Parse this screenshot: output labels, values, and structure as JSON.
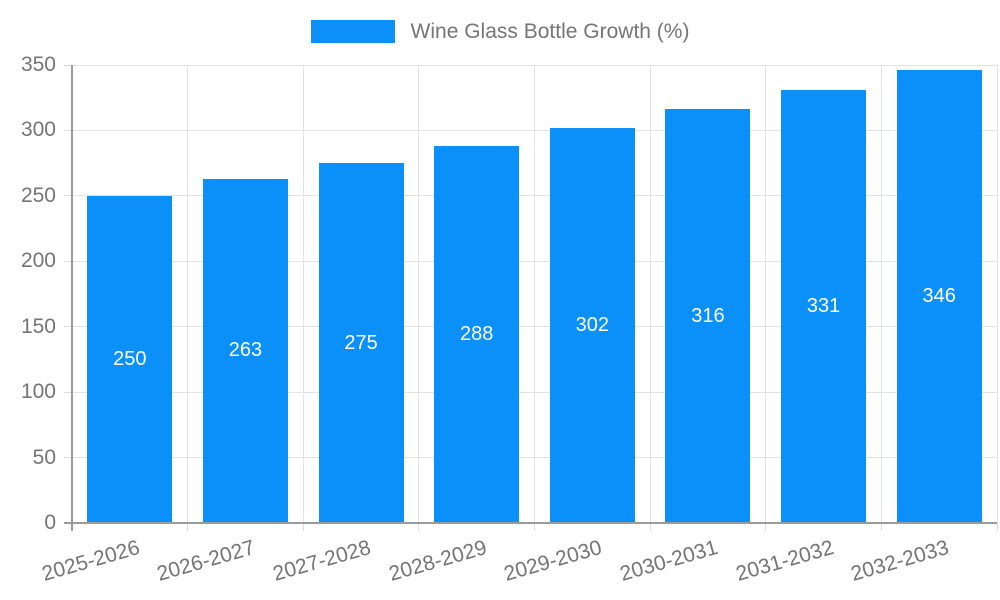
{
  "legend": {
    "label": "Wine Glass Bottle Growth (%)"
  },
  "chart_data": {
    "type": "bar",
    "title": "",
    "series_name": "Wine Glass Bottle Growth (%)",
    "categories": [
      "2025-2026",
      "2026-2027",
      "2027-2028",
      "2028-2029",
      "2029-2030",
      "2030-2031",
      "2031-2032",
      "2032-2033"
    ],
    "values": [
      250,
      263,
      275,
      288,
      302,
      316,
      331,
      346
    ],
    "xlabel": "",
    "ylabel": "",
    "ylim": [
      0,
      350
    ],
    "yticks": [
      0,
      50,
      100,
      150,
      200,
      250,
      300,
      350
    ],
    "grid": true,
    "legend_position": "top",
    "value_labels_position": "inside-center"
  },
  "colors": {
    "bar": "#0a90f8",
    "grid_line": "#e3e3e3",
    "tick_mark": "#dcdcdc",
    "axis_line": "#9b9b9b",
    "tick_label": "#757575",
    "legend_text": "#757575",
    "value_label": "#ffffff",
    "background": "#ffffff"
  }
}
